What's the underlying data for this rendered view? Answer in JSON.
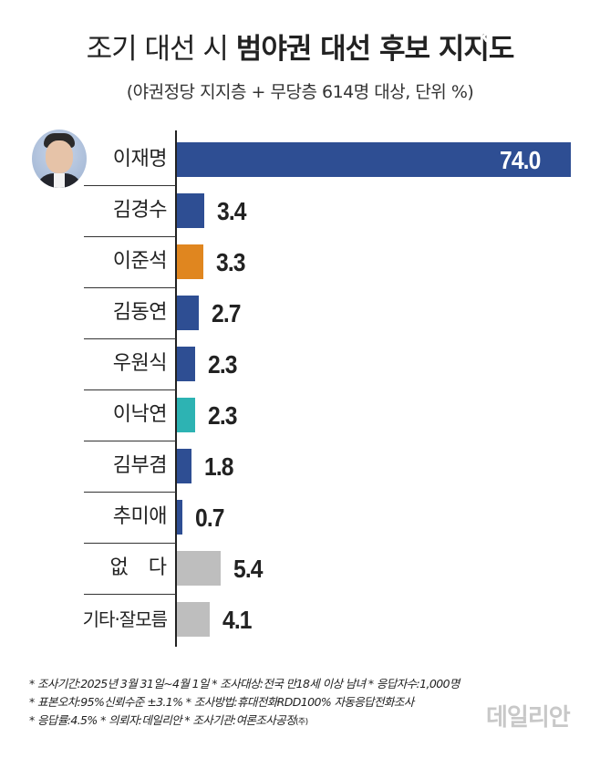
{
  "header": {
    "title_prefix": "조기 대선 시 ",
    "title_bold": "범야권 대선 후보 지지도",
    "subtitle": "(야권정당 지지층 + 무당층 614명 대상, 단위 %)"
  },
  "colors": {
    "main_blue": "#2e4e93",
    "orange": "#e0861f",
    "teal": "#2db3b3",
    "gray": "#bebebe",
    "axis": "#222222"
  },
  "rows": [
    {
      "label": "이재명",
      "value": "74.0",
      "color": "#2e4e93"
    },
    {
      "label": "김경수",
      "value": "3.4",
      "color": "#2e4e93"
    },
    {
      "label": "이준석",
      "value": "3.3",
      "color": "#e0861f"
    },
    {
      "label": "김동연",
      "value": "2.7",
      "color": "#2e4e93"
    },
    {
      "label": "우원식",
      "value": "2.3",
      "color": "#2e4e93"
    },
    {
      "label": "이낙연",
      "value": "2.3",
      "color": "#2db3b3"
    },
    {
      "label": "김부겸",
      "value": "1.8",
      "color": "#2e4e93"
    },
    {
      "label": "추미애",
      "value": "0.7",
      "color": "#2e4e93"
    },
    {
      "label": "없다",
      "value": "5.4",
      "color": "#bebebe"
    },
    {
      "label": "기타·잘모름",
      "value": "4.1",
      "color": "#bebebe"
    }
  ],
  "chart_data": {
    "type": "bar",
    "orientation": "horizontal",
    "title": "조기 대선 시 범야권 대선 후보 지지도",
    "subtitle": "(야권정당 지지층 + 무당층 614명 대상, 단위 %)",
    "categories": [
      "이재명",
      "김경수",
      "이준석",
      "김동연",
      "우원식",
      "이낙연",
      "김부겸",
      "추미애",
      "없다",
      "기타·잘모름"
    ],
    "values": [
      74.0,
      3.4,
      3.3,
      2.7,
      2.3,
      2.3,
      1.8,
      0.7,
      5.4,
      4.1
    ],
    "bar_colors": [
      "#2e4e93",
      "#2e4e93",
      "#e0861f",
      "#2e4e93",
      "#2e4e93",
      "#2db3b3",
      "#2e4e93",
      "#2e4e93",
      "#bebebe",
      "#bebebe"
    ],
    "xlabel": "",
    "ylabel": "",
    "unit": "%",
    "grid": false,
    "legend": "none",
    "annotations": [
      "axis break on 74.0 bar",
      "photo beside 이재명"
    ]
  },
  "footnotes": {
    "line1": "* 조사기간:2025년 3월 31일~4월 1일  * 조사대상:전국 만18세 이상 남녀  * 응답자수:1,000명",
    "line2": "* 표본오차:95%신뢰수준 ±3.1%  * 조사방법:휴대전화RDD100% 자동응답전화조사",
    "line3_main": "* 응답률:4.5%  * 의뢰자:데일리안  * 조사기관:여론조사공정",
    "line3_small": "(주)"
  },
  "logo": "데일리안"
}
